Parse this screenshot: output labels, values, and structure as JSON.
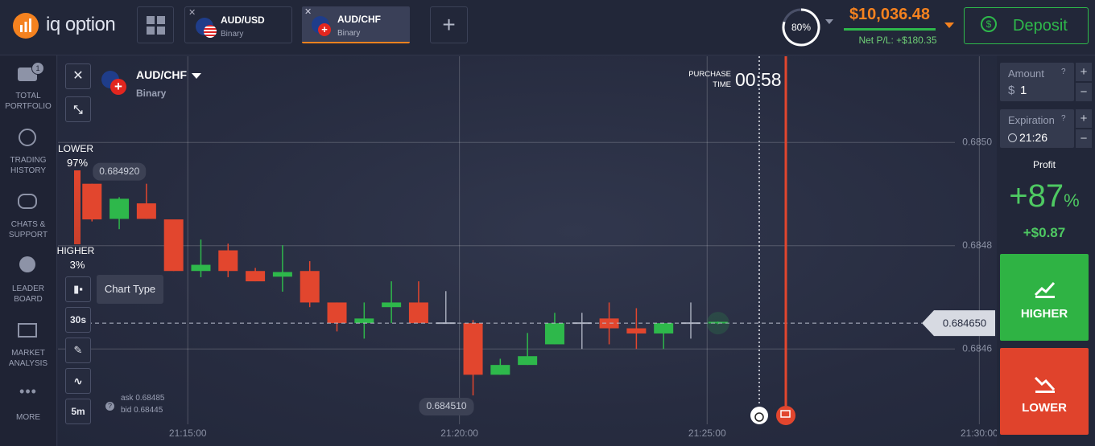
{
  "header": {
    "logo": "iq option",
    "tabs": [
      {
        "pair": "AUD/USD",
        "type": "Binary"
      },
      {
        "pair": "AUD/CHF",
        "type": "Binary"
      }
    ],
    "risk": "80%",
    "balance": "$10,036.48",
    "net_pl": "Net P/L: +$180.35",
    "deposit": "Deposit"
  },
  "sidebar": [
    {
      "lines": [
        "TOTAL",
        "PORTFOLIO"
      ],
      "badge": "1"
    },
    {
      "lines": [
        "TRADING",
        "HISTORY"
      ]
    },
    {
      "lines": [
        "CHATS &",
        "SUPPORT"
      ]
    },
    {
      "lines": [
        "LEADER",
        "BOARD"
      ]
    },
    {
      "lines": [
        "MARKET",
        "ANALYSIS"
      ]
    },
    {
      "lines": [
        "MORE"
      ]
    }
  ],
  "asset": {
    "pair": "AUD/CHF",
    "type": "Binary"
  },
  "timer": {
    "lines": [
      "PURCHASE",
      "TIME"
    ],
    "value": "00:58"
  },
  "sentiment": {
    "lower": "LOWER",
    "lower_pct": "97%",
    "higher": "HIGHER",
    "higher_pct": "3%"
  },
  "tools": {
    "tooltip": "Chart Type",
    "period": "30s",
    "zoom": "5m"
  },
  "quote": {
    "ask": "ask 0.68485",
    "bid": "bid 0.68445"
  },
  "chart_data": {
    "type": "candlestick",
    "categories": [
      null,
      null,
      null,
      null,
      null,
      null,
      null,
      null,
      null,
      null,
      null,
      null,
      null,
      null,
      null,
      null,
      null,
      null,
      null,
      null,
      null,
      null,
      null,
      null
    ],
    "open": [
      0.68492,
      0.684852,
      0.684882,
      0.684851,
      0.684751,
      0.684791,
      0.684751,
      0.68474,
      0.684751,
      0.68469,
      0.68465,
      0.684681,
      0.68469,
      0.68465,
      0.68465,
      0.68455,
      0.684569,
      0.684609,
      0.68465,
      0.684659,
      0.68464,
      0.68463,
      0.68465,
      0.68465
    ],
    "high": [
      0.68492,
      0.684894,
      0.68492,
      0.684851,
      0.684812,
      0.684804,
      0.684757,
      0.684801,
      0.68477,
      0.68469,
      0.68469,
      0.684731,
      0.684731,
      0.684712,
      0.684656,
      0.684581,
      0.684631,
      0.68467,
      0.68467,
      0.68469,
      0.684679,
      0.68465,
      0.68469,
      0.684653
    ],
    "low": [
      0.684847,
      0.684832,
      0.684852,
      0.684751,
      0.684739,
      0.684739,
      0.684731,
      0.684711,
      0.684681,
      0.684634,
      0.68462,
      0.68465,
      0.68465,
      0.68465,
      0.68451,
      0.68455,
      0.684569,
      0.684609,
      0.6846,
      0.684609,
      0.6846,
      0.6846,
      0.68462,
      0.684648
    ],
    "close": [
      0.684851,
      0.684891,
      0.684852,
      0.684751,
      0.684763,
      0.684751,
      0.684731,
      0.684749,
      0.68469,
      0.68465,
      0.684659,
      0.68469,
      0.68465,
      0.68465,
      0.68455,
      0.684569,
      0.684586,
      0.68465,
      0.68465,
      0.68464,
      0.68463,
      0.68465,
      0.68465,
      0.684651
    ],
    "up_color": "#2eb84b",
    "down_color": "#e2462e",
    "flat_color": "#a4a9b8",
    "ylim": [
      0.684412,
      0.685167
    ],
    "yticks": [
      0.6846,
      0.6848,
      {
        "value": 0.685,
        "label": "0.6850"
      }
    ],
    "xlim": [
      -1.25,
      33.3
    ],
    "xticks": [
      {
        "value": 3.52,
        "label": "21:15:00"
      },
      {
        "value": 13.5,
        "label": "21:20:00"
      },
      {
        "value": 22.6,
        "label": "21:25:00"
      },
      {
        "value": 32.6,
        "label": "21:30:00"
      }
    ],
    "grid": true,
    "current": {
      "value": 0.68465,
      "label": "0.684650"
    },
    "high_tag": {
      "value": 0.68492,
      "label": "0.684920"
    },
    "low_tag": {
      "value": 0.68451,
      "label": "0.684510"
    }
  },
  "trade_panel": {
    "amount_label": "Amount",
    "currency": "$",
    "amount": "1",
    "expiration_label": "Expiration",
    "expiration": "21:26",
    "profit_label": "Profit",
    "profit_value": "+87",
    "profit_unit": "%",
    "profit_amount": "+$0.87",
    "higher": "HIGHER",
    "lower": "LOWER"
  }
}
